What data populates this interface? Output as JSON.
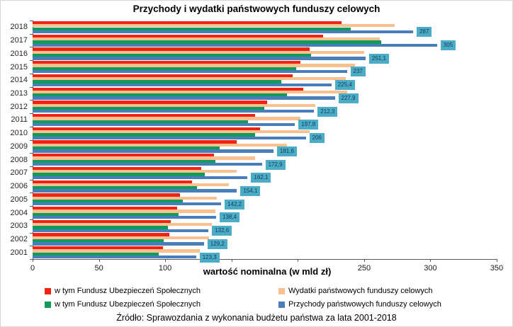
{
  "title": "Przychody i wydatki  państwowych funduszy celowych",
  "source": "Źródło: Sprawozdania  z wykonania budżetu państwa za lata 2001-2018",
  "x_axis": {
    "title": "wartość nominalna (w mld zł)",
    "ticks": [
      0,
      50,
      100,
      150,
      200,
      250,
      300,
      350
    ]
  },
  "chart_data": {
    "type": "bar",
    "orientation": "horizontal",
    "title": "Przychody i wydatki  państwowych funduszy celowych",
    "xlabel": "wartość nominalna (w mld zł)",
    "xlim": [
      0,
      350
    ],
    "x_ticks": [
      0,
      50,
      100,
      150,
      200,
      250,
      300,
      350
    ],
    "grid": false,
    "legend_position": "bottom",
    "categories": [
      "2018",
      "2017",
      "2016",
      "2015",
      "2014",
      "2013",
      "2012",
      "2011",
      "2010",
      "2009",
      "2008",
      "2007",
      "2006",
      "2005",
      "2004",
      "2003",
      "2002",
      "2001"
    ],
    "series": [
      {
        "name": "w tym Fundusz Ubezpieczeń Społecznych",
        "color": "#f02412",
        "values": [
          233,
          219,
          209,
          202,
          196,
          204,
          177,
          168,
          171.5,
          154,
          137,
          127,
          120,
          111,
          109,
          104,
          103,
          98.5
        ]
      },
      {
        "name": "Wydatki państwowych  funduszy celowych",
        "color": "#fac090",
        "values": [
          273,
          262,
          250,
          243,
          236,
          237,
          213,
          202,
          209,
          192,
          168,
          154,
          148,
          139,
          138,
          135,
          133,
          126
        ]
      },
      {
        "name": "w tym Fundusz Ubezpieczeń Społecznych",
        "color": "#12995c",
        "values": [
          240,
          263,
          210,
          199,
          187.5,
          192,
          174.5,
          162.5,
          168,
          141,
          138,
          130,
          124,
          113,
          110,
          102,
          99,
          95
        ]
      },
      {
        "name": "Przychody państwowych funduszy celowych",
        "color": "#4a7ebb",
        "values": [
          287,
          305,
          251.1,
          237,
          225.4,
          227.9,
          212.3,
          197.8,
          206,
          181.6,
          172.9,
          162.1,
          154.1,
          142.2,
          138.4,
          132.6,
          129.2,
          123.3
        ],
        "data_labels": [
          "287",
          "305",
          "251,1",
          "237",
          "225,4",
          "227,9",
          "212,3",
          "197,8",
          "206",
          "181,6",
          "172,9",
          "162,1",
          "154,1",
          "142,2",
          "138,4",
          "132,6",
          "129,2",
          "123,3"
        ]
      }
    ],
    "data_label_style": {
      "background": "#4bacc6",
      "text_color": "#17375e"
    }
  }
}
